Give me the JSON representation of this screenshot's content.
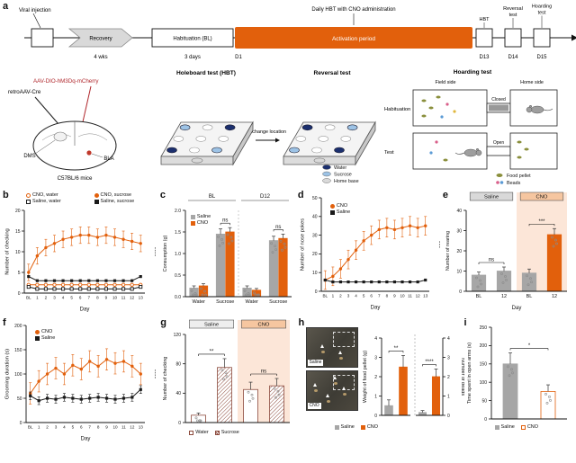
{
  "panels": {
    "a": "a",
    "b": "b",
    "c": "c",
    "d": "d",
    "e": "e",
    "f": "f",
    "g": "g",
    "h": "h",
    "i": "i"
  },
  "colors": {
    "cno": "#e2600c",
    "saline": "#1a1a1a",
    "gray": "#a6a6a6",
    "highlight": "#fce6d8",
    "water": "#1b2f6e",
    "sucrose": "#9dc3e6",
    "home_base": "#d9d9d9",
    "mcherry_red": "#b0272c",
    "pellet": "#8a8f3c",
    "bead_pink": "#d95f8a",
    "bead_blue": "#5b9bd5"
  },
  "panel_a": {
    "timeline": {
      "viral_injection": "Viral injection",
      "recovery": "Recovery",
      "recovery_sub": "4 wks",
      "habituation": "Habituation (BL)",
      "habituation_sub": "3 days",
      "d1": "D1",
      "activation": "Activation period",
      "activation_note": "Daily HBT with CNO administration",
      "hbt": "HBT",
      "reversal_l1": "Reversal",
      "reversal_l2": "test",
      "hoarding_l1": "Hoarding",
      "hoarding_l2": "test",
      "d13": "D13",
      "d14": "D14",
      "d15": "D15"
    },
    "brain": {
      "retro": "retroAAV-Cre",
      "aav": "AAV-DIO-hM3Dq-mCherry",
      "dms": "DMS",
      "bla": "BLA",
      "mouse_line": "C57BL/6 mice"
    },
    "holeboard": {
      "title": "Holeboard test (HBT)",
      "reversal_title": "Reversal test",
      "exchange": "Exchange location",
      "boards": [
        {
          "holes": [
            "water",
            "",
            "sucrose",
            "",
            "",
            "",
            "sucrose",
            "",
            "water"
          ]
        },
        {
          "holes": [
            "sucrose",
            "",
            "water",
            "",
            "",
            "",
            "water",
            "",
            "sucrose"
          ]
        }
      ],
      "legend": [
        {
          "label": "Water",
          "color": "#1b2f6e"
        },
        {
          "label": "Sucrose",
          "color": "#9dc3e6"
        },
        {
          "label": "Home base",
          "color": "#d9d9d9"
        }
      ]
    },
    "hoarding": {
      "title": "Hoarding test",
      "field_side": "Field side",
      "home_side": "Home side",
      "habituation": "Habituation",
      "test": "Test",
      "closed": "Closed",
      "open": "Open",
      "legend": [
        {
          "label": "Food pellet",
          "color": "#8a8f3c"
        },
        {
          "label": "Beads",
          "color": "#d95f8a"
        }
      ]
    }
  },
  "panel_h": {
    "photo_labels": [
      "Saline",
      "CNO"
    ],
    "legend": [
      {
        "label": "Saline",
        "color": "#a6a6a6"
      },
      {
        "label": "CNO",
        "color": "#e2600c"
      }
    ]
  },
  "chart_data": [
    {
      "id": "b",
      "type": "line",
      "ylabel": "Number of checking",
      "xlabel": "Day",
      "ylim": [
        0,
        20
      ],
      "yticks": [
        0,
        5,
        10,
        15,
        20
      ],
      "x": [
        "BL",
        "1",
        "2",
        "3",
        "4",
        "5",
        "6",
        "7",
        "8",
        "9",
        "10",
        "11",
        "12",
        "13"
      ],
      "series": [
        {
          "name": "CNO, water",
          "marker": "circle-open",
          "color": "#e2600c",
          "values": [
            2,
            2,
            2,
            2,
            2,
            2,
            2,
            2,
            2,
            2,
            2,
            2,
            2,
            2
          ]
        },
        {
          "name": "CNO, sucrose",
          "marker": "circle-filled",
          "color": "#e2600c",
          "err": 2,
          "values": [
            5,
            9,
            11,
            12,
            13,
            13.5,
            14,
            14,
            13.5,
            14,
            13.5,
            13,
            12.5,
            12
          ]
        },
        {
          "name": "Saline, water",
          "marker": "square-open",
          "color": "#1a1a1a",
          "values": [
            1.5,
            1,
            1,
            1,
            1,
            1,
            1,
            1,
            1,
            1,
            1,
            1,
            1,
            1.5
          ]
        },
        {
          "name": "Saline, sucrose",
          "marker": "square-filled",
          "color": "#1a1a1a",
          "values": [
            4,
            3,
            3,
            3,
            3,
            3,
            3,
            3,
            3,
            3,
            3,
            3,
            3,
            4
          ]
        }
      ],
      "sig": "****"
    },
    {
      "id": "c",
      "type": "grouped-bar",
      "ylabel": "Consumption (g)",
      "ylim": [
        0,
        2
      ],
      "yticks": [
        "0.0",
        "0.5",
        "1.0",
        "1.5",
        "2.0"
      ],
      "group_headers": [
        {
          "label": "BL"
        },
        {
          "label": "D12"
        }
      ],
      "header_style": "line",
      "divider": true,
      "dots": true,
      "categories": [
        "Water",
        "Sucrose",
        "Water",
        "Sucrose"
      ],
      "series": [
        {
          "name": "Saline",
          "color": "#a6a6a6",
          "values": [
            0.2,
            1.45,
            0.2,
            1.3
          ],
          "err": [
            0.05,
            0.12,
            0.05,
            0.1
          ]
        },
        {
          "name": "CNO",
          "color": "#e2600c",
          "values": [
            0.25,
            1.5,
            0.15,
            1.35
          ],
          "err": [
            0.05,
            0.1,
            0.04,
            0.1
          ]
        }
      ],
      "annotations": [
        {
          "text": "ns",
          "cat": 1
        },
        {
          "text": "ns",
          "cat": 3
        }
      ]
    },
    {
      "id": "d",
      "type": "line",
      "ylabel": "Number of nose pokes",
      "xlabel": "Day",
      "ylim": [
        0,
        50
      ],
      "yticks": [
        0,
        10,
        20,
        30,
        40,
        50
      ],
      "x": [
        "BL",
        "1",
        "2",
        "3",
        "4",
        "5",
        "6",
        "7",
        "8",
        "9",
        "10",
        "11",
        "12",
        "13"
      ],
      "series": [
        {
          "name": "CNO",
          "marker": "circle-filled",
          "color": "#e2600c",
          "err": 5,
          "values": [
            6,
            8,
            12,
            17,
            22,
            27,
            30,
            33,
            34,
            33,
            34,
            35,
            34,
            35
          ]
        },
        {
          "name": "Saline",
          "marker": "square-filled",
          "color": "#1a1a1a",
          "values": [
            6,
            5,
            5,
            5,
            5,
            5,
            5,
            5,
            5,
            5,
            5,
            5,
            5,
            6
          ]
        }
      ],
      "sig": "***"
    },
    {
      "id": "e",
      "type": "bar",
      "ylabel": "Number of rearing",
      "xlabel": "Day",
      "ylim": [
        0,
        40
      ],
      "yticks": [
        0,
        10,
        20,
        30,
        40
      ],
      "group_headers": [
        {
          "label": "Saline",
          "bg": "#d9d9d9"
        },
        {
          "label": "CNO",
          "bg": "#f6c6a0"
        }
      ],
      "header_style": "box",
      "dots": true,
      "categories": [
        "BL",
        "12",
        "BL",
        "12"
      ],
      "highlight": {
        "from": 2,
        "to": 3,
        "color": "#fce6d8"
      },
      "bars": [
        {
          "value": 8,
          "color": "#a6a6a6",
          "err": 1.5
        },
        {
          "value": 10,
          "color": "#a6a6a6",
          "err": 2
        },
        {
          "value": 9,
          "color": "#a6a6a6",
          "err": 2
        },
        {
          "value": 28,
          "color": "#e2600c",
          "err": 3
        }
      ],
      "annotations": [
        {
          "text": "ns",
          "from": 0,
          "to": 1
        },
        {
          "text": "***",
          "from": 2,
          "to": 3
        }
      ]
    },
    {
      "id": "f",
      "type": "line",
      "ylabel": "Grooming duration (s)",
      "xlabel": "Day",
      "ylim": [
        0,
        200
      ],
      "yticks": [
        0,
        50,
        100,
        150,
        200
      ],
      "x": [
        "BL",
        "1",
        "2",
        "3",
        "4",
        "5",
        "6",
        "7",
        "8",
        "9",
        "10",
        "11",
        "12",
        "13"
      ],
      "series": [
        {
          "name": "CNO",
          "marker": "circle-filled",
          "color": "#e2600c",
          "err": 22,
          "values": [
            60,
            85,
            100,
            112,
            100,
            118,
            110,
            126,
            116,
            130,
            122,
            126,
            116,
            100
          ]
        },
        {
          "name": "Saline",
          "marker": "square-filled",
          "color": "#1a1a1a",
          "err": 8,
          "values": [
            55,
            45,
            50,
            48,
            52,
            50,
            48,
            50,
            52,
            50,
            48,
            50,
            52,
            68
          ]
        }
      ],
      "sig": "****"
    },
    {
      "id": "g",
      "type": "bar",
      "ylabel": "Number of checking",
      "ylim": [
        0,
        120
      ],
      "yticks": [
        0,
        40,
        80,
        120
      ],
      "group_headers": [
        {
          "label": "Saline"
        },
        {
          "label": "CNO",
          "bg": "#f6c6a0"
        }
      ],
      "header_style": "box",
      "dots": true,
      "highlight": {
        "from": 2,
        "to": 3,
        "color": "#fce6d8"
      },
      "bars": [
        {
          "value": 10,
          "color": "#8c4a3c",
          "style": "open",
          "err": 3
        },
        {
          "value": 75,
          "color": "#8c4a3c",
          "style": "hatch",
          "err": 12
        },
        {
          "value": 45,
          "color": "#8c4a3c",
          "style": "open",
          "err": 10
        },
        {
          "value": 50,
          "color": "#8c4a3c",
          "style": "hatch",
          "err": 10
        }
      ],
      "annotations": [
        {
          "text": "**",
          "from": 0,
          "to": 1
        },
        {
          "text": "ns",
          "from": 2,
          "to": 3
        }
      ],
      "legend": [
        {
          "label": "Water",
          "style": "open",
          "color": "#8c4a3c"
        },
        {
          "label": "Sucrose",
          "style": "hatch",
          "color": "#8c4a3c"
        }
      ]
    },
    {
      "id": "h1",
      "type": "bar",
      "ylabel": "Weight of food pellet (g)",
      "ylim": [
        0,
        4
      ],
      "yticks": [
        0,
        1,
        2,
        3,
        4
      ],
      "bars": [
        {
          "value": 0.5,
          "color": "#a6a6a6",
          "err": 0.3
        },
        {
          "value": 2.5,
          "color": "#e2600c",
          "err": 0.6
        }
      ],
      "annotations": [
        {
          "text": "**",
          "from": 0,
          "to": 1
        }
      ]
    },
    {
      "id": "h2",
      "type": "bar",
      "ylabel": "Number of beads",
      "ylab_side": "right",
      "divider_left": true,
      "ylim": [
        0,
        4
      ],
      "yticks": [
        0,
        1,
        2,
        3,
        4
      ],
      "bars": [
        {
          "value": 0.15,
          "color": "#a6a6a6",
          "err": 0.1
        },
        {
          "value": 2,
          "color": "#e2600c",
          "err": 0.4
        }
      ],
      "annotations": [
        {
          "text": "****",
          "from": 0,
          "to": 1
        }
      ]
    },
    {
      "id": "i",
      "type": "bar",
      "ylabel": "Time spent in open arms (s)",
      "ylim": [
        0,
        250
      ],
      "yticks": [
        0,
        50,
        100,
        150,
        200,
        250
      ],
      "dots": true,
      "bars": [
        {
          "value": 150,
          "color": "#a6a6a6",
          "err": 30
        },
        {
          "value": 75,
          "color": "#e2600c",
          "style": "open",
          "err": 18
        }
      ],
      "annotations": [
        {
          "text": "*",
          "from": 0,
          "to": 1
        }
      ],
      "legend": [
        {
          "label": "Saline",
          "color": "#a6a6a6"
        },
        {
          "label": "CNO",
          "color": "#e2600c",
          "style": "open"
        }
      ]
    }
  ]
}
